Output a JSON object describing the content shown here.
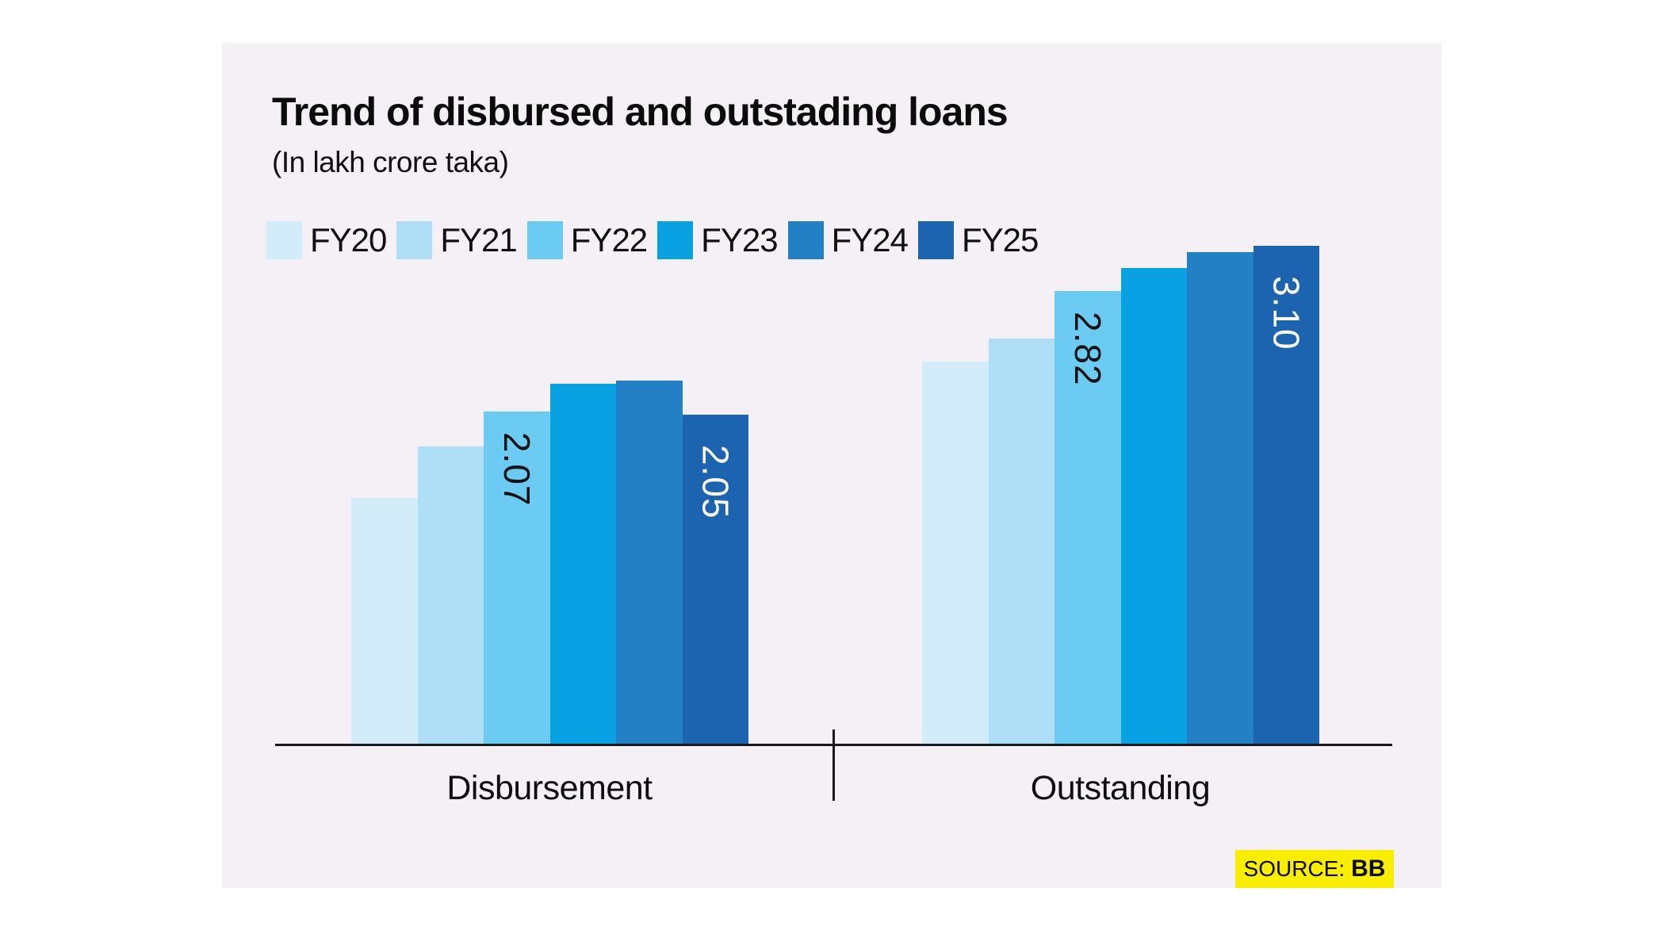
{
  "chart": {
    "title": "Trend of disbursed and outstading loans",
    "subtitle": "(In lakh crore taka)"
  },
  "source": {
    "label": "SOURCE:",
    "value": "BB"
  },
  "colors": {
    "panel_background": "#F5F0F5",
    "page_background": "#FFFFFF",
    "axis": "#1A1A1A",
    "source_badge_background": "#F9ED00",
    "dark_label": "#111111",
    "light_label": "#FFFFFF"
  },
  "chart_data": {
    "type": "bar",
    "title": "Trend of disbursed and outstading loans",
    "subtitle": "(In lakh crore taka)",
    "unit": "lakh crore taka",
    "legend_position": "top",
    "grid": false,
    "categories": [
      "Disbursement",
      "Outstanding"
    ],
    "series": [
      {
        "name": "FY20",
        "color": "#D2ECF9",
        "values": [
          1.53,
          2.38
        ]
      },
      {
        "name": "FY21",
        "color": "#AEDFF7",
        "values": [
          1.85,
          2.52
        ]
      },
      {
        "name": "FY22",
        "color": "#6CCBF2",
        "values": [
          2.07,
          2.82
        ]
      },
      {
        "name": "FY23",
        "color": "#0AA1E2",
        "values": [
          2.24,
          2.96
        ]
      },
      {
        "name": "FY24",
        "color": "#2480C4",
        "values": [
          2.26,
          3.06
        ]
      },
      {
        "name": "FY25",
        "color": "#1C63B0",
        "values": [
          2.05,
          3.1
        ]
      }
    ],
    "shown_value_labels": [
      {
        "group": "Disbursement",
        "series": "FY22",
        "text": "2.07",
        "text_color": "#111111"
      },
      {
        "group": "Disbursement",
        "series": "FY25",
        "text": "2.05",
        "text_color": "#FFFFFF"
      },
      {
        "group": "Outstanding",
        "series": "FY22",
        "text": "2.82",
        "text_color": "#111111"
      },
      {
        "group": "Outstanding",
        "series": "FY25",
        "text": "3.10",
        "text_color": "#FFFFFF"
      }
    ],
    "value_axis_shown": false
  }
}
